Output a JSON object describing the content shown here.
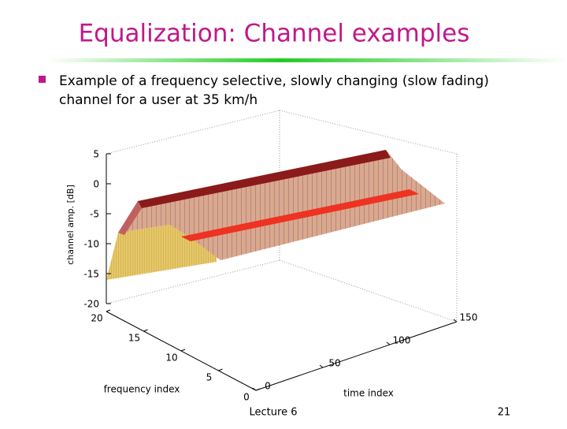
{
  "header": {
    "title": "Equalization: Channel examples"
  },
  "bullets": [
    [
      "Example of a frequency selective, slowly changing (slow fading)",
      "channel for a user at 35 km/h"
    ]
  ],
  "figure": {
    "zlabel": "channel amp. [dB]",
    "zticks": [
      5,
      0,
      -5,
      -10,
      -15,
      -20
    ],
    "xlabel": "frequency index",
    "xticks": [
      20,
      15,
      10,
      5,
      0
    ],
    "ylabel": "time index",
    "yticks": [
      0,
      50,
      100,
      150
    ]
  },
  "footer": {
    "lecture": "Lecture 6",
    "page": 21
  }
}
